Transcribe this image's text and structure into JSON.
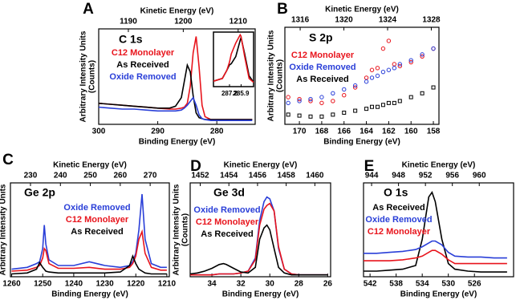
{
  "chart_data": [
    {
      "type": "line",
      "panel": "A",
      "title": "C 1s",
      "xlabel": "Binding Energy (eV)",
      "x2label": "Kinetic Energy (eV)",
      "ylabel": [
        "Arbitrary Intensity Units",
        "(Counts)"
      ],
      "xlim": [
        300,
        273.5
      ],
      "xticks": [
        300,
        290,
        280
      ],
      "x2lim": [
        1184.6,
        1213.1
      ],
      "x2ticks": [
        1190,
        1200,
        1210
      ],
      "ylim": [
        0,
        100
      ],
      "x": [
        300,
        298,
        296,
        294,
        292,
        290,
        288,
        287,
        286,
        285.5,
        285,
        284.5,
        284,
        283.5,
        283,
        282.5,
        282,
        281,
        280,
        278,
        276,
        274
      ],
      "series": [
        {
          "name": "C12 Monolayer",
          "color": "#e8141c",
          "values": [
            22,
            21,
            20,
            19,
            18,
            17,
            16,
            16,
            17,
            18,
            22,
            40,
            75,
            92,
            60,
            20,
            8,
            5,
            5,
            5,
            5,
            5
          ]
        },
        {
          "name": "As Received",
          "color": "#000000",
          "values": [
            22,
            21,
            20,
            19,
            18,
            17,
            17,
            19,
            28,
            45,
            62,
            55,
            30,
            12,
            7,
            6,
            5,
            5,
            5,
            5,
            5,
            5
          ]
        },
        {
          "name": "Oxide Removed",
          "color": "#2a3fd8",
          "values": [
            18,
            17,
            16,
            16,
            15,
            14,
            14,
            14,
            15,
            17,
            20,
            24,
            28,
            20,
            10,
            6,
            5,
            4,
            4,
            4,
            4,
            4
          ]
        }
      ],
      "inset": {
        "xlim": [
          289,
          284.5
        ],
        "xticks": [
          285.9,
          287.2
        ],
        "ylim": [
          0,
          100
        ],
        "x": [
          289,
          288,
          287.5,
          287.2,
          287,
          286.5,
          286,
          285.9,
          285.5,
          285,
          284.5
        ],
        "series": [
          {
            "color": "#000000",
            "values": [
              10,
              15,
              30,
              40,
              42,
              55,
              85,
              90,
              60,
              20,
              8
            ]
          },
          {
            "color": "#e8141c",
            "values": [
              10,
              15,
              30,
              45,
              60,
              80,
              95,
              92,
              55,
              15,
              8
            ]
          }
        ]
      }
    },
    {
      "type": "line",
      "panel": "B",
      "title": "S 2p",
      "xlabel": "Binding Energy (eV)",
      "x2label": "Kinetic Energy (eV)",
      "ylabel": [
        "Arbitrary Intensity Units",
        "(Counts)"
      ],
      "xlim": [
        171.3,
        157.5
      ],
      "xticks": [
        170,
        168,
        166,
        164,
        162,
        160,
        158
      ],
      "x2lim": [
        1314.6,
        1328.7
      ],
      "x2ticks": [
        1316,
        1320,
        1324,
        1328
      ],
      "ylim": [
        0,
        100
      ],
      "x": [
        171,
        170,
        169,
        168,
        167,
        166,
        165,
        164,
        163.5,
        163,
        162.5,
        162,
        161.5,
        161,
        160,
        159,
        158
      ],
      "series": [
        {
          "name": "C12 Monolayer",
          "color": "#e8141c",
          "marker": "circle",
          "values": [
            28,
            26,
            24,
            22,
            24,
            30,
            38,
            48,
            56,
            58,
            78,
            86,
            62,
            60,
            64,
            70,
            78
          ]
        },
        {
          "name": "Oxide Removed",
          "color": "#2a3fd8",
          "marker": "circle",
          "values": [
            22,
            24,
            26,
            28,
            32,
            36,
            40,
            44,
            48,
            50,
            54,
            56,
            58,
            62,
            66,
            72,
            78
          ]
        },
        {
          "name": "As Received",
          "color": "#000000",
          "marker": "square",
          "values": [
            10,
            9,
            8,
            8,
            10,
            12,
            14,
            16,
            18,
            18,
            20,
            22,
            22,
            24,
            28,
            32,
            38
          ]
        }
      ]
    },
    {
      "type": "line",
      "panel": "C",
      "title": "Ge 2p",
      "xlabel": "Binding Energy (eV)",
      "x2label": "Kinetic Energy (eV)",
      "ylabel": [
        "Arbitrary Intensity Units"
      ],
      "xlim": [
        1260.4,
        1209.2
      ],
      "xticks": [
        1260,
        1250,
        1240,
        1230,
        1220,
        1210
      ],
      "x2lim": [
        223.3,
        276.4
      ],
      "x2ticks": [
        230,
        240,
        250,
        260,
        270
      ],
      "ylim": [
        0,
        100
      ],
      "x": [
        1260,
        1255,
        1252,
        1251,
        1250,
        1249.5,
        1249,
        1248,
        1245,
        1240,
        1235,
        1230,
        1225,
        1222,
        1221,
        1220,
        1219,
        1218,
        1217,
        1215,
        1212,
        1210
      ],
      "series": [
        {
          "name": "Oxide Removed",
          "color": "#2a3fd8",
          "values": [
            8,
            10,
            14,
            16,
            30,
            55,
            35,
            18,
            12,
            12,
            16,
            12,
            10,
            12,
            16,
            25,
            50,
            88,
            40,
            14,
            10,
            10
          ]
        },
        {
          "name": "C12 Monolayer",
          "color": "#e8141c",
          "values": [
            6,
            7,
            10,
            12,
            20,
            30,
            28,
            14,
            9,
            9,
            10,
            8,
            8,
            10,
            14,
            22,
            40,
            48,
            25,
            10,
            7,
            7
          ]
        },
        {
          "name": "As Received",
          "color": "#000000",
          "values": [
            3,
            4,
            8,
            15,
            10,
            8,
            6,
            5,
            4,
            4,
            4,
            4,
            5,
            12,
            22,
            14,
            8,
            6,
            4,
            3,
            3,
            3
          ]
        }
      ]
    },
    {
      "type": "line",
      "panel": "D",
      "title": "Ge 3d",
      "xlabel": "Binding Energy (eV)",
      "x2label": "Kinetic Energy (eV)",
      "ylabel": [
        "Arbitrary Intensity Units",
        "(Counts)"
      ],
      "xlim": [
        35.5,
        25.8
      ],
      "xticks": [
        34,
        32,
        30,
        28,
        26
      ],
      "x2lim": [
        1451.3,
        1461.1
      ],
      "x2ticks": [
        1452,
        1454,
        1456,
        1458,
        1460
      ],
      "ylim": [
        0,
        100
      ],
      "x": [
        35.5,
        35,
        34.5,
        34,
        33.5,
        33.2,
        33,
        32.5,
        32,
        31.5,
        31,
        30.7,
        30.4,
        30.2,
        30,
        29.7,
        29.4,
        29,
        28.5,
        28,
        27,
        26
      ],
      "series": [
        {
          "name": "Oxide Removed",
          "color": "#2a3fd8",
          "values": [
            2,
            2,
            2,
            2,
            3,
            3,
            3,
            3,
            4,
            6,
            20,
            60,
            80,
            85,
            83,
            70,
            30,
            8,
            3,
            2,
            2,
            2
          ]
        },
        {
          "name": "C12 Monolayer",
          "color": "#e8141c",
          "values": [
            2,
            2,
            2,
            2,
            3,
            3,
            3,
            3,
            4,
            6,
            18,
            55,
            72,
            76,
            78,
            70,
            32,
            8,
            3,
            2,
            2,
            2
          ]
        },
        {
          "name": "As Received",
          "color": "#000000",
          "values": [
            3,
            4,
            6,
            9,
            13,
            14,
            13,
            9,
            5,
            4,
            10,
            40,
            52,
            55,
            50,
            30,
            10,
            4,
            2,
            2,
            2,
            2
          ]
        }
      ]
    },
    {
      "type": "line",
      "panel": "E",
      "title": "O 1s",
      "xlabel": "Binding Energy (eV)",
      "x2label": "Kinetic Energy (eV)",
      "xlim": [
        543,
        520
      ],
      "xticks": [
        542,
        538,
        534,
        530,
        526
      ],
      "x2lim": [
        942.8,
        965.1
      ],
      "x2ticks": [
        944,
        948,
        952,
        956,
        960
      ],
      "ylim": [
        0,
        100
      ],
      "x": [
        543,
        541,
        539,
        537,
        535,
        534,
        533,
        532.5,
        532,
        531,
        530,
        529,
        527,
        525,
        523,
        521
      ],
      "series": [
        {
          "name": "As Received",
          "color": "#000000",
          "values": [
            6,
            6,
            7,
            8,
            12,
            40,
            85,
            90,
            80,
            40,
            14,
            8,
            6,
            5,
            5,
            5
          ]
        },
        {
          "name": "Oxide Removed",
          "color": "#2a3fd8",
          "values": [
            25,
            25,
            26,
            27,
            29,
            32,
            36,
            38,
            38,
            34,
            26,
            22,
            21,
            21,
            20,
            20
          ]
        },
        {
          "name": "C12 Monolayer",
          "color": "#e8141c",
          "values": [
            17,
            17,
            17,
            18,
            20,
            22,
            26,
            28,
            28,
            24,
            18,
            14,
            14,
            14,
            14,
            14
          ]
        }
      ]
    }
  ]
}
